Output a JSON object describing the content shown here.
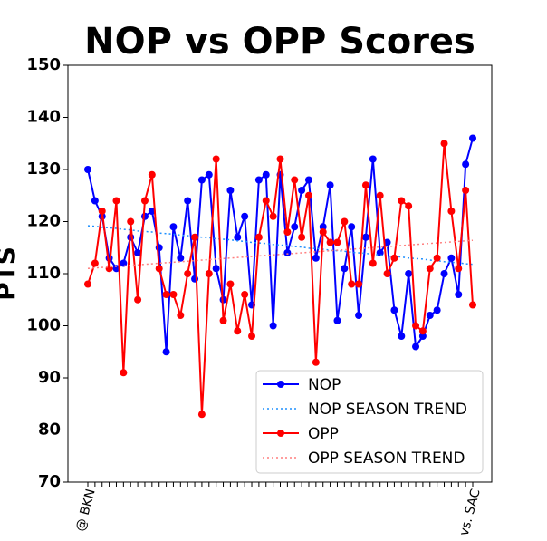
{
  "chart_data": {
    "type": "line",
    "title": "NOP vs OPP Scores",
    "y_label": "PTS",
    "categories": [
      "@ BKN",
      null,
      null,
      null,
      null,
      null,
      null,
      null,
      null,
      null,
      null,
      null,
      null,
      null,
      null,
      null,
      null,
      null,
      null,
      null,
      null,
      null,
      null,
      null,
      null,
      null,
      null,
      null,
      null,
      null,
      null,
      null,
      null,
      null,
      null,
      null,
      null,
      null,
      null,
      null,
      null,
      null,
      null,
      null,
      null,
      null,
      null,
      null,
      null,
      null,
      null,
      null,
      null,
      null,
      "vs. SAC"
    ],
    "ylim": [
      70,
      150
    ],
    "yticks": [
      70,
      80,
      90,
      100,
      110,
      120,
      130,
      140,
      150
    ],
    "legend": "lower right",
    "series": [
      {
        "name": "NOP",
        "color": "#0000ff",
        "linestyle": "solid",
        "marker": true,
        "values": [
          130,
          124,
          121,
          113,
          111,
          112,
          117,
          114,
          121,
          122,
          115,
          95,
          119,
          113,
          124,
          109,
          128,
          129,
          111,
          105,
          126,
          117,
          121,
          104,
          128,
          129,
          100,
          129,
          114,
          119,
          126,
          128,
          113,
          119,
          127,
          101,
          111,
          119,
          102,
          117,
          132,
          114,
          116,
          103,
          98,
          110,
          96,
          98,
          102,
          103,
          110,
          113,
          106,
          131,
          136
        ]
      },
      {
        "name": "NOP SEASON TREND",
        "color": "#1e90ff",
        "linestyle": "dotted",
        "marker": false,
        "values": [
          119.2,
          119.1,
          118.9,
          118.8,
          118.7,
          118.5,
          118.4,
          118.2,
          118.1,
          118.0,
          117.8,
          117.7,
          117.6,
          117.4,
          117.3,
          117.1,
          117.0,
          116.9,
          116.7,
          116.6,
          116.5,
          116.3,
          116.2,
          116.0,
          115.9,
          115.8,
          115.6,
          115.5,
          115.4,
          115.2,
          115.1,
          114.9,
          114.8,
          114.7,
          114.5,
          114.4,
          114.3,
          114.1,
          114.0,
          113.9,
          113.7,
          113.6,
          113.4,
          113.3,
          113.2,
          113.0,
          112.9,
          112.8,
          112.6,
          112.5,
          112.3,
          112.2,
          112.1,
          111.9,
          111.8
        ]
      },
      {
        "name": "OPP",
        "color": "#ff0000",
        "linestyle": "solid",
        "marker": true,
        "values": [
          108,
          112,
          122,
          111,
          124,
          91,
          120,
          105,
          124,
          129,
          111,
          106,
          106,
          102,
          110,
          117,
          83,
          110,
          132,
          101,
          108,
          99,
          106,
          98,
          117,
          124,
          121,
          132,
          118,
          128,
          117,
          125,
          93,
          118,
          116,
          116,
          120,
          108,
          108,
          127,
          112,
          125,
          110,
          113,
          124,
          123,
          100,
          99,
          111,
          113,
          135,
          122,
          111,
          126,
          104
        ]
      },
      {
        "name": "OPP SEASON TREND",
        "color": "#ff7f7f",
        "linestyle": "dotted",
        "marker": false,
        "values": [
          111.0,
          111.1,
          111.2,
          111.3,
          111.4,
          111.5,
          111.6,
          111.7,
          111.8,
          111.9,
          112.0,
          112.1,
          112.2,
          112.3,
          112.4,
          112.5,
          112.6,
          112.7,
          112.8,
          112.9,
          113.0,
          113.1,
          113.2,
          113.3,
          113.4,
          113.5,
          113.6,
          113.7,
          113.8,
          113.9,
          114.0,
          114.1,
          114.2,
          114.3,
          114.4,
          114.5,
          114.6,
          114.7,
          114.8,
          114.9,
          115.0,
          115.1,
          115.2,
          115.3,
          115.4,
          115.5,
          115.6,
          115.7,
          115.8,
          115.9,
          116.0,
          116.1,
          116.2,
          116.3,
          116.4
        ]
      }
    ]
  }
}
